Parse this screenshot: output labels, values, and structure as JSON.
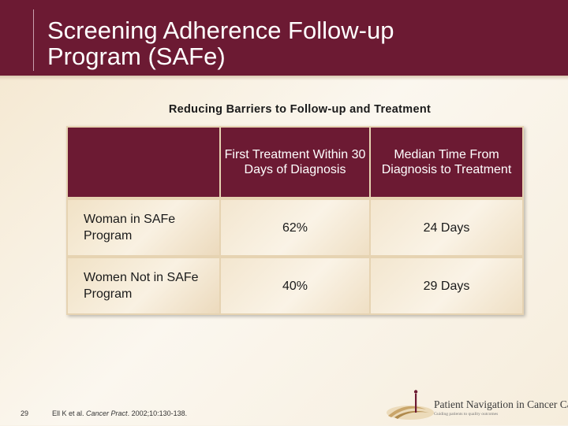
{
  "slide": {
    "title_line1": "Screening Adherence Follow-up",
    "title_line2": "Program (SAFe)",
    "subtitle": "Reducing Barriers to Follow-up and Treatment"
  },
  "table": {
    "headers": [
      "",
      "First Treatment Within 30 Days of Diagnosis",
      "Median Time From Diagnosis to Treatment"
    ],
    "rows": [
      {
        "label": "Woman in SAFe Program",
        "first_treatment": "62%",
        "median_time": "24 Days"
      },
      {
        "label": "Women Not in SAFe Program",
        "first_treatment": "40%",
        "median_time": "29 Days"
      }
    ]
  },
  "footer": {
    "slide_number": "29",
    "citation_prefix": "Ell K et al. ",
    "citation_journal": "Cancer Pract",
    "citation_suffix": ". 2002;10:130-138."
  },
  "logo": {
    "name": "Patient Navigation in Cancer Care",
    "tagline": "Guiding patients to quality outcomes"
  },
  "colors": {
    "header": "#6c1a33",
    "background": "#f7f1e6",
    "table_fill": "#f5e8d2"
  }
}
